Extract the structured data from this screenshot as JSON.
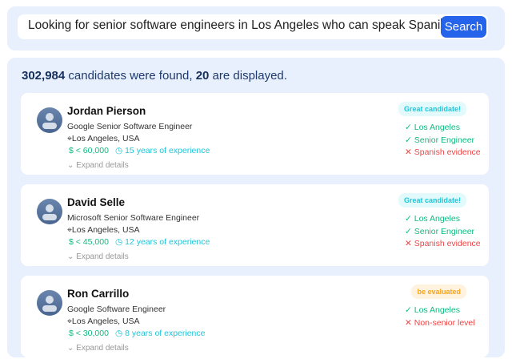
{
  "search": {
    "query": "Looking for senior software engineers in Los Angeles who can speak Spanish",
    "button": "Search"
  },
  "summary": {
    "found": "302,984",
    "found_text": " candidates were found, ",
    "displayed": "20",
    "displayed_text": " are displayed."
  },
  "colors": {
    "accent": "#2563eb",
    "good": "#10b981",
    "bad": "#ef4444",
    "great_badge": "#22c5d8",
    "eval_badge": "#f5a524"
  },
  "candidates": [
    {
      "name": "Jordan Pierson",
      "title": "Google Senior Software Engineer",
      "location": "Los Angeles, USA",
      "salary": "$ < 60,000",
      "experience": "15 years of experience",
      "expand": "Expand details",
      "badge": "Great candidate!",
      "badge_type": "great",
      "checks": [
        {
          "ok": true,
          "label": "Los Angeles"
        },
        {
          "ok": true,
          "label": "Senior Engineer"
        },
        {
          "ok": false,
          "label": "Spanish evidence"
        }
      ]
    },
    {
      "name": "David Selle",
      "title": "Microsoft Senior Software Engineer",
      "location": "Los Angeles, USA",
      "salary": "$ < 45,000",
      "experience": "12 years of experience",
      "expand": "Expand details",
      "badge": "Great candidate!",
      "badge_type": "great",
      "checks": [
        {
          "ok": true,
          "label": "Los Angeles"
        },
        {
          "ok": true,
          "label": "Senior Engineer"
        },
        {
          "ok": false,
          "label": "Spanish evidence"
        }
      ]
    },
    {
      "name": "Ron Carrillo",
      "title": "Google Software Engineer",
      "location": "Los Angeles, USA",
      "salary": "$ < 30,000",
      "experience": "8 years of experience",
      "expand": "Expand details",
      "badge": "be evaluated",
      "badge_type": "eval",
      "checks": [
        {
          "ok": true,
          "label": "Los Angeles"
        },
        {
          "ok": false,
          "label": "Non-senior level"
        }
      ]
    }
  ]
}
